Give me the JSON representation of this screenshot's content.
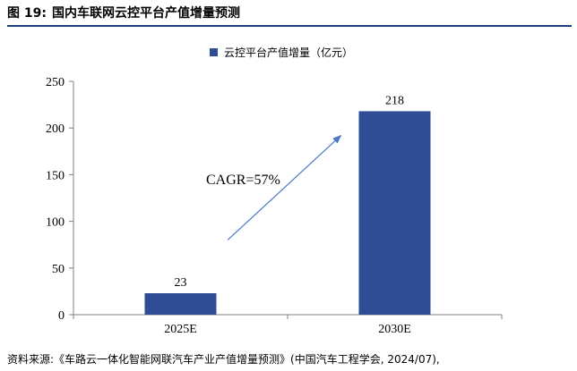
{
  "figure": {
    "number": "图 19:",
    "title": "国内车联网云控平台产值增量预测",
    "source": "资料来源:《车路云一体化智能网联汽车产业产值增量预测》(中国汽车工程学会, 2024/07),"
  },
  "colors": {
    "bar": "#2e4d94",
    "arrow": "#4a78c4",
    "axis": "#7f7f7f",
    "title_rule": "#1f3f7a"
  },
  "chart_data": {
    "type": "bar",
    "title": "",
    "categories": [
      "2025E",
      "2030E"
    ],
    "series": [
      {
        "name": "云控平台产值增量（亿元）",
        "values": [
          23,
          218
        ],
        "labels": [
          "23",
          "218"
        ]
      }
    ],
    "xlabel": "",
    "ylabel": "",
    "ylim": [
      0,
      250
    ],
    "yticks": [
      0,
      50,
      100,
      150,
      200,
      250
    ],
    "ytick_labels": [
      "0",
      "50",
      "100",
      "150",
      "200",
      "250"
    ],
    "grid": false,
    "legend": "top-center",
    "annotation": {
      "text": "CAGR=57%",
      "arrow": {
        "from": [
          "2025E",
          80
        ],
        "to": [
          "2030E",
          192
        ]
      }
    }
  }
}
